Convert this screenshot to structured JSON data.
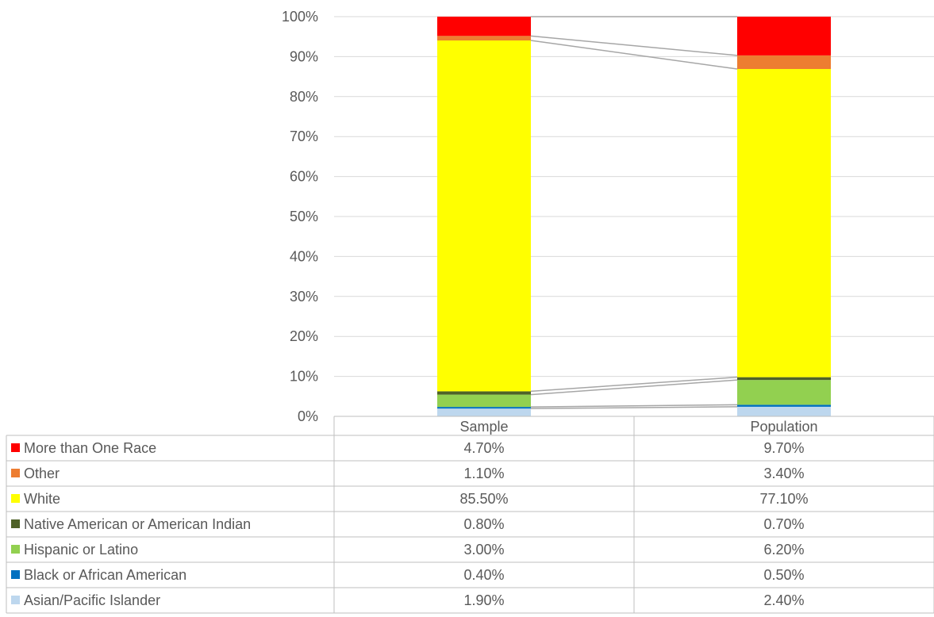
{
  "chart_data": {
    "type": "bar",
    "stacked": true,
    "percent_stacked": true,
    "categories": [
      "Sample",
      "Population"
    ],
    "series": [
      {
        "name": "Asian/Pacific Islander",
        "values": [
          1.9,
          2.4
        ],
        "labels": [
          "1.90%",
          "2.40%"
        ],
        "color": "#BDD7EE"
      },
      {
        "name": "Black or African American",
        "values": [
          0.4,
          0.5
        ],
        "labels": [
          "0.40%",
          "0.50%"
        ],
        "color": "#0070C0"
      },
      {
        "name": "Hispanic or Latino",
        "values": [
          3.0,
          6.2
        ],
        "labels": [
          "3.00%",
          "6.20%"
        ],
        "color": "#92D050"
      },
      {
        "name": "Native American or American Indian",
        "values": [
          0.8,
          0.7
        ],
        "labels": [
          "0.80%",
          "0.70%"
        ],
        "color": "#4F6228"
      },
      {
        "name": "White",
        "values": [
          85.5,
          77.1
        ],
        "labels": [
          "85.50%",
          "77.10%"
        ],
        "color": "#FFFF00"
      },
      {
        "name": "Other",
        "values": [
          1.1,
          3.4
        ],
        "labels": [
          "1.10%",
          "3.40%"
        ],
        "color": "#ED7D31"
      },
      {
        "name": "More than One Race",
        "values": [
          4.7,
          9.7
        ],
        "labels": [
          "4.70%",
          "9.70%"
        ],
        "color": "#FF0000"
      }
    ],
    "y_ticks": [
      "0%",
      "10%",
      "20%",
      "30%",
      "40%",
      "50%",
      "60%",
      "70%",
      "80%",
      "90%",
      "100%"
    ],
    "ylim": [
      0,
      100
    ],
    "grid": true,
    "series_lines": true,
    "legend": "data-table",
    "title": "",
    "xlabel": "",
    "ylabel": ""
  }
}
